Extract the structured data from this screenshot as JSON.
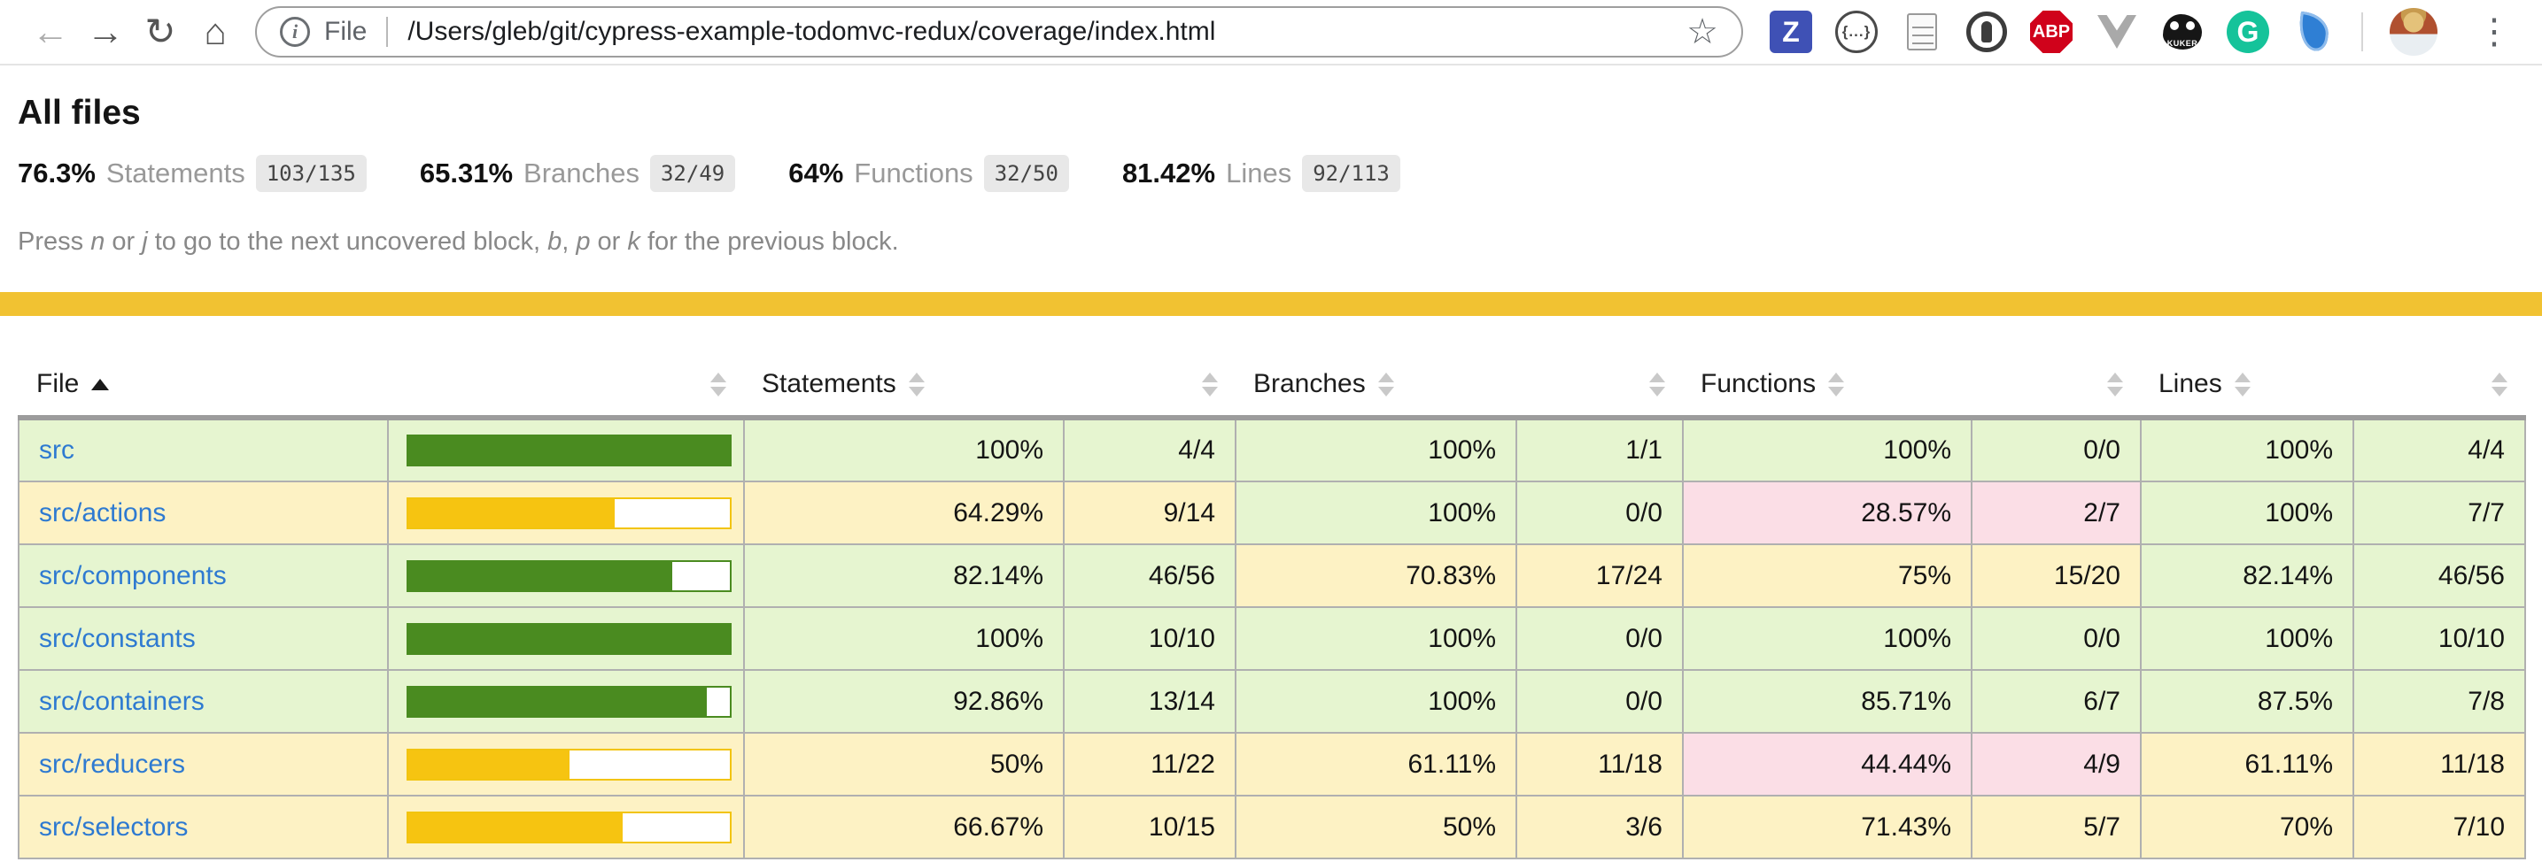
{
  "browser": {
    "url_scheme_label": "File",
    "url": "/Users/gleb/git/cypress-example-todomvc-redux/coverage/index.html",
    "ext_labels": {
      "z": "Z",
      "braces": "{...}",
      "abp": "ABP",
      "kuker": "KUKER",
      "grammarly": "G"
    }
  },
  "page": {
    "title": "All files",
    "summary": [
      {
        "pct": "76.3%",
        "label": "Statements",
        "frac": "103/135"
      },
      {
        "pct": "65.31%",
        "label": "Branches",
        "frac": "32/49"
      },
      {
        "pct": "64%",
        "label": "Functions",
        "frac": "32/50"
      },
      {
        "pct": "81.42%",
        "label": "Lines",
        "frac": "92/113"
      }
    ],
    "hint_parts": [
      {
        "t": "Press "
      },
      {
        "t": "n",
        "i": true
      },
      {
        "t": " or "
      },
      {
        "t": "j",
        "i": true
      },
      {
        "t": " to go to the next uncovered block, "
      },
      {
        "t": "b",
        "i": true
      },
      {
        "t": ", "
      },
      {
        "t": "p",
        "i": true
      },
      {
        "t": " or "
      },
      {
        "t": "k",
        "i": true
      },
      {
        "t": " for the previous block."
      }
    ]
  },
  "table": {
    "headers": {
      "file": "File",
      "statements": "Statements",
      "branches": "Branches",
      "functions": "Functions",
      "lines": "Lines"
    },
    "sorted_column": "File",
    "sort_direction": "asc",
    "rows": [
      {
        "file": "src",
        "bar_pct": 100,
        "statements": {
          "pct": "100%",
          "frac": "4/4",
          "level": "high"
        },
        "branches": {
          "pct": "100%",
          "frac": "1/1",
          "level": "high"
        },
        "functions": {
          "pct": "100%",
          "frac": "0/0",
          "level": "high"
        },
        "lines": {
          "pct": "100%",
          "frac": "4/4",
          "level": "high"
        }
      },
      {
        "file": "src/actions",
        "bar_pct": 64.29,
        "statements": {
          "pct": "64.29%",
          "frac": "9/14",
          "level": "medium"
        },
        "branches": {
          "pct": "100%",
          "frac": "0/0",
          "level": "high"
        },
        "functions": {
          "pct": "28.57%",
          "frac": "2/7",
          "level": "low"
        },
        "lines": {
          "pct": "100%",
          "frac": "7/7",
          "level": "high"
        }
      },
      {
        "file": "src/components",
        "bar_pct": 82.14,
        "statements": {
          "pct": "82.14%",
          "frac": "46/56",
          "level": "high"
        },
        "branches": {
          "pct": "70.83%",
          "frac": "17/24",
          "level": "medium"
        },
        "functions": {
          "pct": "75%",
          "frac": "15/20",
          "level": "medium"
        },
        "lines": {
          "pct": "82.14%",
          "frac": "46/56",
          "level": "high"
        }
      },
      {
        "file": "src/constants",
        "bar_pct": 100,
        "statements": {
          "pct": "100%",
          "frac": "10/10",
          "level": "high"
        },
        "branches": {
          "pct": "100%",
          "frac": "0/0",
          "level": "high"
        },
        "functions": {
          "pct": "100%",
          "frac": "0/0",
          "level": "high"
        },
        "lines": {
          "pct": "100%",
          "frac": "10/10",
          "level": "high"
        }
      },
      {
        "file": "src/containers",
        "bar_pct": 92.86,
        "statements": {
          "pct": "92.86%",
          "frac": "13/14",
          "level": "high"
        },
        "branches": {
          "pct": "100%",
          "frac": "0/0",
          "level": "high"
        },
        "functions": {
          "pct": "85.71%",
          "frac": "6/7",
          "level": "high"
        },
        "lines": {
          "pct": "87.5%",
          "frac": "7/8",
          "level": "high"
        }
      },
      {
        "file": "src/reducers",
        "bar_pct": 50,
        "statements": {
          "pct": "50%",
          "frac": "11/22",
          "level": "medium"
        },
        "branches": {
          "pct": "61.11%",
          "frac": "11/18",
          "level": "medium"
        },
        "functions": {
          "pct": "44.44%",
          "frac": "4/9",
          "level": "low"
        },
        "lines": {
          "pct": "61.11%",
          "frac": "11/18",
          "level": "medium"
        }
      },
      {
        "file": "src/selectors",
        "bar_pct": 66.67,
        "statements": {
          "pct": "66.67%",
          "frac": "10/15",
          "level": "medium"
        },
        "branches": {
          "pct": "50%",
          "frac": "3/6",
          "level": "medium"
        },
        "functions": {
          "pct": "71.43%",
          "frac": "5/7",
          "level": "medium"
        },
        "lines": {
          "pct": "70%",
          "frac": "7/10",
          "level": "medium"
        }
      }
    ],
    "colors": {
      "high_bg": "#e6f5d0",
      "medium_bg": "#fdf2c4",
      "low_bg": "#fbdee6",
      "bar_green": "#4a8b20",
      "bar_yellow": "#f6c411",
      "status_line": "#f1c232",
      "link_blue": "#2e7ad1"
    }
  }
}
